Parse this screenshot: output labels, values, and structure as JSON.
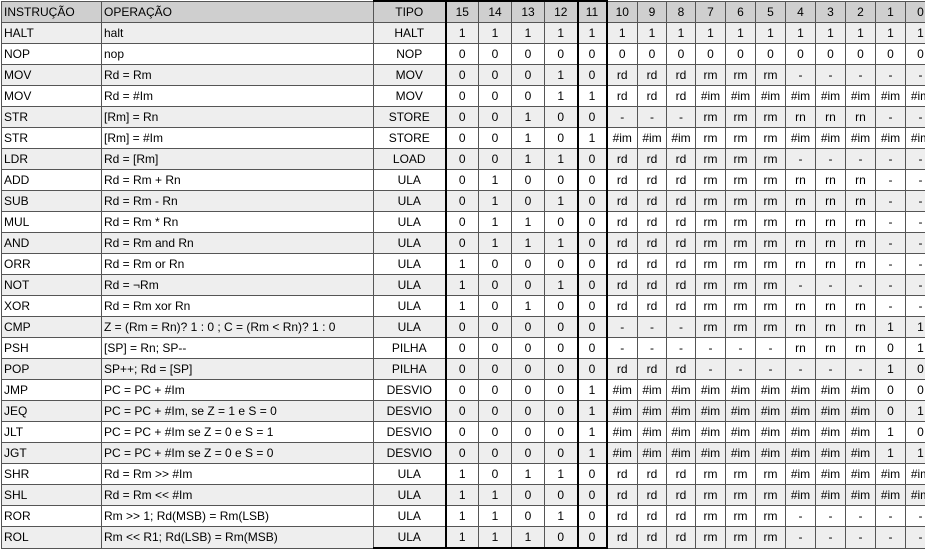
{
  "headers": [
    "INSTRUÇÃO",
    "OPERAÇÃO",
    "TIPO",
    "15",
    "14",
    "13",
    "12",
    "11",
    "10",
    "9",
    "8",
    "7",
    "6",
    "5",
    "4",
    "3",
    "2",
    "1",
    "0"
  ],
  "rows": [
    [
      "HALT",
      "halt",
      "HALT",
      "1",
      "1",
      "1",
      "1",
      "1",
      "1",
      "1",
      "1",
      "1",
      "1",
      "1",
      "1",
      "1",
      "1",
      "1",
      "1"
    ],
    [
      "NOP",
      "nop",
      "NOP",
      "0",
      "0",
      "0",
      "0",
      "0",
      "0",
      "0",
      "0",
      "0",
      "0",
      "0",
      "0",
      "0",
      "0",
      "0",
      "0"
    ],
    [
      "MOV",
      "Rd = Rm",
      "MOV",
      "0",
      "0",
      "0",
      "1",
      "0",
      "rd",
      "rd",
      "rd",
      "rm",
      "rm",
      "rm",
      "-",
      "-",
      "-",
      "-",
      "-"
    ],
    [
      "MOV",
      "Rd = #Im",
      "MOV",
      "0",
      "0",
      "0",
      "1",
      "1",
      "rd",
      "rd",
      "rd",
      "#im",
      "#im",
      "#im",
      "#im",
      "#im",
      "#im",
      "#im",
      "#im"
    ],
    [
      "STR",
      "[Rm] = Rn",
      "STORE",
      "0",
      "0",
      "1",
      "0",
      "0",
      "-",
      "-",
      "-",
      "rm",
      "rm",
      "rm",
      "rn",
      "rn",
      "rn",
      "-",
      "-"
    ],
    [
      "STR",
      "[Rm] = #Im",
      "STORE",
      "0",
      "0",
      "1",
      "0",
      "1",
      "#im",
      "#im",
      "#im",
      "rm",
      "rm",
      "rm",
      "#im",
      "#im",
      "#im",
      "#im",
      "#im"
    ],
    [
      "LDR",
      "Rd = [Rm]",
      "LOAD",
      "0",
      "0",
      "1",
      "1",
      "0",
      "rd",
      "rd",
      "rd",
      "rm",
      "rm",
      "rm",
      "-",
      "-",
      "-",
      "-",
      "-"
    ],
    [
      "ADD",
      "Rd = Rm + Rn",
      "ULA",
      "0",
      "1",
      "0",
      "0",
      "0",
      "rd",
      "rd",
      "rd",
      "rm",
      "rm",
      "rm",
      "rn",
      "rn",
      "rn",
      "-",
      "-"
    ],
    [
      "SUB",
      "Rd = Rm - Rn",
      "ULA",
      "0",
      "1",
      "0",
      "1",
      "0",
      "rd",
      "rd",
      "rd",
      "rm",
      "rm",
      "rm",
      "rn",
      "rn",
      "rn",
      "-",
      "-"
    ],
    [
      "MUL",
      "Rd = Rm * Rn",
      "ULA",
      "0",
      "1",
      "1",
      "0",
      "0",
      "rd",
      "rd",
      "rd",
      "rm",
      "rm",
      "rm",
      "rn",
      "rn",
      "rn",
      "-",
      "-"
    ],
    [
      "AND",
      "Rd = Rm and Rn",
      "ULA",
      "0",
      "1",
      "1",
      "1",
      "0",
      "rd",
      "rd",
      "rd",
      "rm",
      "rm",
      "rm",
      "rn",
      "rn",
      "rn",
      "-",
      "-"
    ],
    [
      "ORR",
      "Rd = Rm or Rn",
      "ULA",
      "1",
      "0",
      "0",
      "0",
      "0",
      "rd",
      "rd",
      "rd",
      "rm",
      "rm",
      "rm",
      "rn",
      "rn",
      "rn",
      "-",
      "-"
    ],
    [
      "NOT",
      "Rd = ¬Rm",
      "ULA",
      "1",
      "0",
      "0",
      "1",
      "0",
      "rd",
      "rd",
      "rd",
      "rm",
      "rm",
      "rm",
      "-",
      "-",
      "-",
      "-",
      "-"
    ],
    [
      "XOR",
      "Rd = Rm xor Rn",
      "ULA",
      "1",
      "0",
      "1",
      "0",
      "0",
      "rd",
      "rd",
      "rd",
      "rm",
      "rm",
      "rm",
      "rn",
      "rn",
      "rn",
      "-",
      "-"
    ],
    [
      "CMP",
      "Z = (Rm = Rn)? 1 : 0 ;  C = (Rm < Rn)? 1 : 0",
      "ULA",
      "0",
      "0",
      "0",
      "0",
      "0",
      "-",
      "-",
      "-",
      "rm",
      "rm",
      "rm",
      "rn",
      "rn",
      "rn",
      "1",
      "1"
    ],
    [
      "PSH",
      "[SP] = Rn; SP--",
      "PILHA",
      "0",
      "0",
      "0",
      "0",
      "0",
      "-",
      "-",
      "-",
      "-",
      "-",
      "-",
      "rn",
      "rn",
      "rn",
      "0",
      "1"
    ],
    [
      "POP",
      "SP++; Rd = [SP]",
      "PILHA",
      "0",
      "0",
      "0",
      "0",
      "0",
      "rd",
      "rd",
      "rd",
      "-",
      "-",
      "-",
      "-",
      "-",
      "-",
      "1",
      "0"
    ],
    [
      "JMP",
      "PC = PC + #Im",
      "DESVIO",
      "0",
      "0",
      "0",
      "0",
      "1",
      "#im",
      "#im",
      "#im",
      "#im",
      "#im",
      "#im",
      "#im",
      "#im",
      "#im",
      "0",
      "0"
    ],
    [
      "JEQ",
      "PC = PC + #Im, se Z = 1 e S = 0",
      "DESVIO",
      "0",
      "0",
      "0",
      "0",
      "1",
      "#im",
      "#im",
      "#im",
      "#im",
      "#im",
      "#im",
      "#im",
      "#im",
      "#im",
      "0",
      "1"
    ],
    [
      "JLT",
      "PC = PC + #Im se Z = 0 e S = 1",
      "DESVIO",
      "0",
      "0",
      "0",
      "0",
      "1",
      "#im",
      "#im",
      "#im",
      "#im",
      "#im",
      "#im",
      "#im",
      "#im",
      "#im",
      "1",
      "0"
    ],
    [
      "JGT",
      "PC = PC + #Im  se Z = 0 e S = 0",
      "DESVIO",
      "0",
      "0",
      "0",
      "0",
      "1",
      "#im",
      "#im",
      "#im",
      "#im",
      "#im",
      "#im",
      "#im",
      "#im",
      "#im",
      "1",
      "1"
    ],
    [
      "SHR",
      "Rd = Rm >> #Im",
      "ULA",
      "1",
      "0",
      "1",
      "1",
      "0",
      "rd",
      "rd",
      "rd",
      "rm",
      "rm",
      "rm",
      "#im",
      "#im",
      "#im",
      "#im",
      "#im"
    ],
    [
      "SHL",
      "Rd = Rm << #Im",
      "ULA",
      "1",
      "1",
      "0",
      "0",
      "0",
      "rd",
      "rd",
      "rd",
      "rm",
      "rm",
      "rm",
      "#im",
      "#im",
      "#im",
      "#im",
      "#im"
    ],
    [
      "ROR",
      "Rm >> 1; Rd(MSB) = Rm(LSB)",
      "ULA",
      "1",
      "1",
      "0",
      "1",
      "0",
      "rd",
      "rd",
      "rd",
      "rm",
      "rm",
      "rm",
      "-",
      "-",
      "-",
      "-",
      "-"
    ],
    [
      "ROL",
      "Rm << R1; Rd(LSB) = Rm(MSB)",
      "ULA",
      "1",
      "1",
      "1",
      "0",
      "0",
      "rd",
      "rd",
      "rd",
      "rm",
      "rm",
      "rm",
      "-",
      "-",
      "-",
      "-",
      "-"
    ]
  ]
}
